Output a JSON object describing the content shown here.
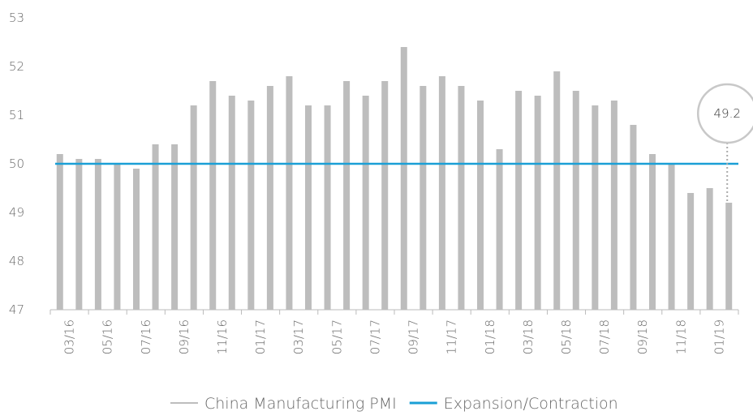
{
  "chart_data": {
    "type": "bar",
    "categories": [
      "03/16",
      null,
      "05/16",
      null,
      "07/16",
      null,
      "09/16",
      null,
      "11/16",
      null,
      "01/17",
      null,
      "03/17",
      null,
      "05/17",
      null,
      "07/17",
      null,
      "09/17",
      null,
      "11/17",
      null,
      "01/18",
      null,
      "03/18",
      null,
      "05/18",
      null,
      "07/18",
      null,
      "09/18",
      null,
      "11/18",
      null,
      "01/19",
      null
    ],
    "series": [
      {
        "name": "China Manufacturing PMI",
        "color": "#bdbdbd",
        "type": "bar",
        "values": [
          50.2,
          50.1,
          50.1,
          50.0,
          49.9,
          50.4,
          50.4,
          51.2,
          51.7,
          51.4,
          51.3,
          51.6,
          51.8,
          51.2,
          51.2,
          51.7,
          51.4,
          51.7,
          52.4,
          51.6,
          51.8,
          51.6,
          51.3,
          50.3,
          51.5,
          51.4,
          51.9,
          51.5,
          51.2,
          51.3,
          50.8,
          50.2,
          50.0,
          49.4,
          49.5,
          49.2
        ]
      },
      {
        "name": "Expansion/Contraction",
        "color": "#1a9fd6",
        "type": "line",
        "values": [
          50,
          50,
          50,
          50,
          50,
          50,
          50,
          50,
          50,
          50,
          50,
          50,
          50,
          50,
          50,
          50,
          50,
          50,
          50,
          50,
          50,
          50,
          50,
          50,
          50,
          50,
          50,
          50,
          50,
          50,
          50,
          50,
          50,
          50,
          50,
          50
        ]
      }
    ],
    "annotation": "49.2",
    "ylim": [
      47,
      53
    ],
    "yticks": [
      47,
      48,
      49,
      50,
      51,
      52,
      53
    ],
    "grid": false,
    "legend": "bottom"
  }
}
